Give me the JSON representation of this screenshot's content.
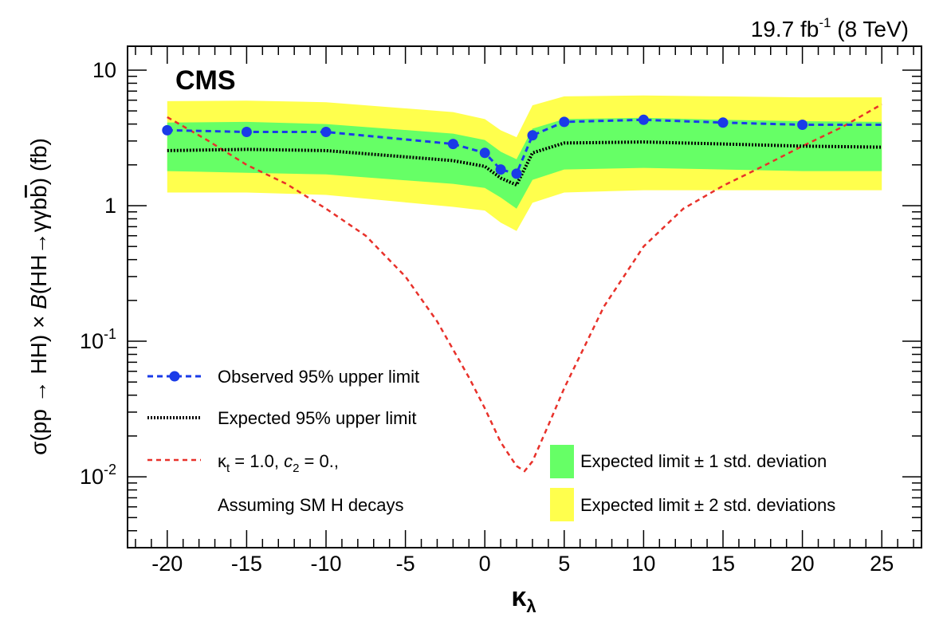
{
  "header": {
    "lumi_value": "19.7 fb",
    "lumi_exp": "-1",
    "energy": " (8 TeV)"
  },
  "cms_label": "CMS",
  "colors": {
    "band_1sigma": "#66ff66",
    "band_2sigma": "#ffff4d",
    "observed": "#1a3be8",
    "expected": "#000000",
    "theory": "#e8312a"
  },
  "chart_data": {
    "type": "line",
    "x_scale": "linear",
    "y_scale": "log",
    "xlim": [
      -22.5,
      27.5
    ],
    "ylim": [
      0.003,
      15
    ],
    "x_ticks": [
      -20,
      -15,
      -10,
      -5,
      0,
      5,
      10,
      15,
      20,
      25
    ],
    "x_tick_labels": [
      "-20",
      "-15",
      "-10",
      "-5",
      "0",
      "5",
      "10",
      "15",
      "20",
      "25"
    ],
    "y_ticks": [
      {
        "value": 10,
        "base": "10",
        "exp": ""
      },
      {
        "value": 1,
        "base": "1",
        "exp": ""
      },
      {
        "value": 0.1,
        "base": "10",
        "exp": "-1"
      },
      {
        "value": 0.01,
        "base": "10",
        "exp": "-2"
      }
    ],
    "xlabel": {
      "kappa": "κ",
      "sub": "λ"
    },
    "ylabel": {
      "part1": "σ(pp → HH) × ",
      "part2": "B",
      "part3": "(HH→γγb",
      "bbar": "b",
      "part4": ") (fb)"
    },
    "series": [
      {
        "name": "Observed 95% upper limit",
        "style": "dashed-markers",
        "x": [
          -20,
          -15,
          -10,
          -2,
          0,
          1,
          2,
          3,
          5,
          10,
          15,
          20,
          25
        ],
        "y": [
          3.6,
          3.5,
          3.5,
          2.85,
          2.45,
          1.85,
          1.72,
          3.3,
          4.15,
          4.3,
          4.1,
          3.95,
          3.95
        ],
        "markers_at": [
          -20,
          -15,
          -10,
          -2,
          0,
          1,
          2,
          3,
          5,
          10,
          15,
          20
        ]
      },
      {
        "name": "Expected 95% upper limit",
        "style": "dotted",
        "x": [
          -20,
          -15,
          -10,
          -2,
          0,
          1,
          2,
          3,
          5,
          10,
          15,
          20,
          25
        ],
        "y": [
          2.55,
          2.6,
          2.55,
          2.15,
          1.95,
          1.6,
          1.42,
          2.45,
          2.9,
          2.95,
          2.85,
          2.75,
          2.7
        ]
      },
      {
        "name": "κt = 1.0, c2 = 0.,",
        "style": "dashed",
        "x": [
          -20,
          -17.5,
          -15,
          -12.5,
          -10,
          -7.5,
          -5,
          -3,
          -1,
          0,
          1,
          2,
          2.5,
          3,
          4,
          5,
          7.5,
          10,
          12.5,
          15,
          17.5,
          20,
          22.5,
          25
        ],
        "y": [
          4.5,
          3.05,
          2.0,
          1.45,
          0.95,
          0.6,
          0.3,
          0.14,
          0.054,
          0.032,
          0.018,
          0.012,
          0.011,
          0.013,
          0.024,
          0.045,
          0.18,
          0.5,
          0.95,
          1.4,
          1.95,
          2.75,
          3.8,
          5.6
        ]
      }
    ],
    "bands": [
      {
        "name": "Expected limit ± 2 std. deviations",
        "x": [
          -20,
          -15,
          -10,
          -2,
          0,
          1,
          2,
          3,
          5,
          10,
          15,
          20,
          25
        ],
        "low": [
          1.25,
          1.25,
          1.2,
          0.98,
          0.92,
          0.75,
          0.65,
          1.05,
          1.25,
          1.3,
          1.3,
          1.3,
          1.3
        ],
        "high": [
          5.9,
          5.95,
          5.8,
          4.9,
          4.35,
          3.6,
          3.2,
          5.5,
          6.4,
          6.5,
          6.4,
          6.3,
          6.3
        ]
      },
      {
        "name": "Expected limit ± 1 std. deviation",
        "x": [
          -20,
          -15,
          -10,
          -2,
          0,
          1,
          2,
          3,
          5,
          10,
          15,
          20,
          25
        ],
        "low": [
          1.8,
          1.75,
          1.7,
          1.45,
          1.35,
          1.15,
          0.95,
          1.55,
          1.85,
          1.9,
          1.85,
          1.8,
          1.8
        ],
        "high": [
          4.1,
          4.15,
          4.0,
          3.4,
          3.05,
          2.5,
          2.2,
          3.7,
          4.35,
          4.45,
          4.3,
          4.2,
          4.15
        ]
      }
    ]
  },
  "legend": {
    "observed": "Observed 95% upper limit",
    "expected": "Expected 95% upper limit",
    "theory_kappa": "κ",
    "theory_kappa_sub": "t",
    "theory_rest": " = 1.0, ",
    "theory_c": "c",
    "theory_c_sub": "2",
    "theory_end": " = 0.,",
    "theory_line2": "Assuming SM H decays",
    "band1": "Expected limit ± 1 std. deviation",
    "band2": "Expected limit ± 2 std. deviations"
  }
}
